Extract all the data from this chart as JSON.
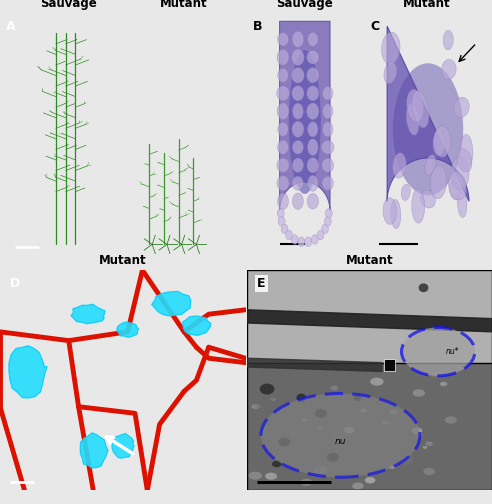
{
  "title_A_left": "Sauvage",
  "title_A_right": "Mutant",
  "title_B": "Sauvage",
  "title_C": "Mutant",
  "title_D": "Mutant",
  "title_E": "Mutant",
  "label_A": "A",
  "label_B": "B",
  "label_C": "C",
  "label_D": "D",
  "label_E": "E",
  "fig_bg": "#f0f0f0",
  "font_size_label": 9,
  "font_size_title": 8.5
}
